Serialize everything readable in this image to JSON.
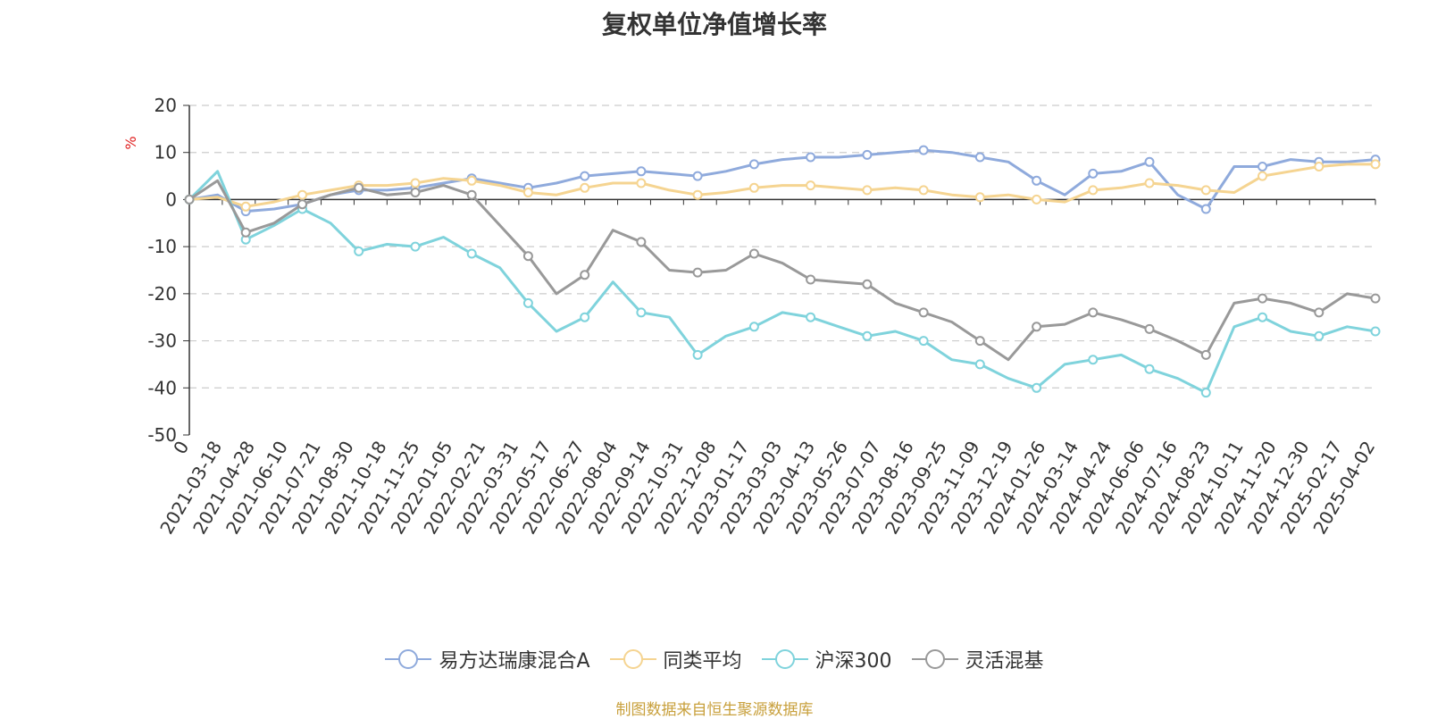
{
  "chart_data": {
    "type": "line",
    "title": "复权单位净值增长率",
    "ylabel": "%",
    "ylim": [
      -50,
      20
    ],
    "yticks": [
      -50,
      -40,
      -30,
      -20,
      -10,
      0,
      10,
      20
    ],
    "grid": true,
    "legend_position": "bottom",
    "x_tick_labels": [
      "0",
      "2021-03-18",
      "2021-04-28",
      "2021-06-10",
      "2021-07-21",
      "2021-08-30",
      "2021-10-18",
      "2021-11-25",
      "2022-01-05",
      "2022-02-21",
      "2022-03-31",
      "2022-05-17",
      "2022-06-27",
      "2022-08-04",
      "2022-09-14",
      "2022-10-31",
      "2022-12-08",
      "2023-01-17",
      "2023-03-03",
      "2023-04-13",
      "2023-05-26",
      "2023-07-07",
      "2023-08-16",
      "2023-09-25",
      "2023-11-09",
      "2023-12-19",
      "2024-01-26",
      "2024-03-14",
      "2024-04-24",
      "2024-06-06",
      "2024-07-16",
      "2024-08-23",
      "2024-10-11",
      "2024-11-20",
      "2024-12-30",
      "2025-02-17",
      "2025-04-02"
    ],
    "series": [
      {
        "name": "易方达瑞康混合A",
        "color": "#8faadc",
        "values": [
          0,
          1.0,
          -2.5,
          -2.0,
          -1.0,
          1.0,
          2.0,
          2.0,
          2.5,
          3.5,
          4.5,
          3.5,
          2.5,
          3.5,
          5.0,
          5.5,
          6.0,
          5.5,
          5.0,
          6.0,
          7.5,
          8.5,
          9.0,
          9.0,
          9.5,
          10.0,
          10.5,
          10.0,
          9.0,
          8.0,
          4.0,
          1.0,
          5.5,
          6.0,
          8.0,
          1.0,
          -2.0,
          7.0,
          7.0,
          8.5,
          8.0,
          8.0,
          8.5
        ]
      },
      {
        "name": "同类平均",
        "color": "#f5d491",
        "values": [
          0,
          0.5,
          -1.5,
          -0.5,
          1.0,
          2.0,
          3.0,
          3.0,
          3.5,
          4.5,
          4.0,
          3.0,
          1.5,
          1.0,
          2.5,
          3.5,
          3.5,
          2.0,
          1.0,
          1.5,
          2.5,
          3.0,
          3.0,
          2.5,
          2.0,
          2.5,
          2.0,
          1.0,
          0.5,
          1.0,
          0.0,
          -0.5,
          2.0,
          2.5,
          3.5,
          3.0,
          2.0,
          1.5,
          5.0,
          6.0,
          7.0,
          7.5,
          7.5
        ]
      },
      {
        "name": "沪深300",
        "color": "#7fd3dc",
        "values": [
          0,
          6.0,
          -8.5,
          -5.5,
          -2.0,
          -5.0,
          -11.0,
          -9.5,
          -10.0,
          -8.0,
          -11.5,
          -14.5,
          -22.0,
          -28.0,
          -25.0,
          -17.5,
          -24.0,
          -25.0,
          -33.0,
          -29.0,
          -27.0,
          -24.0,
          -25.0,
          -27.0,
          -29.0,
          -28.0,
          -30.0,
          -34.0,
          -35.0,
          -38.0,
          -40.0,
          -35.0,
          -34.0,
          -33.0,
          -36.0,
          -38.0,
          -41.0,
          -27.0,
          -25.0,
          -28.0,
          -29.0,
          -27.0,
          -28.0
        ]
      },
      {
        "name": "灵活混基",
        "color": "#999999",
        "values": [
          0,
          4.0,
          -7.0,
          -5.0,
          -1.0,
          1.0,
          2.5,
          1.0,
          1.5,
          3.0,
          1.0,
          -5.5,
          -12.0,
          -20.0,
          -16.0,
          -6.5,
          -9.0,
          -15.0,
          -15.5,
          -15.0,
          -11.5,
          -13.5,
          -17.0,
          -17.5,
          -18.0,
          -22.0,
          -24.0,
          -26.0,
          -30.0,
          -34.0,
          -27.0,
          -26.5,
          -24.0,
          -25.5,
          -27.5,
          -30.0,
          -33.0,
          -22.0,
          -21.0,
          -22.0,
          -24.0,
          -20.0,
          -21.0
        ]
      }
    ]
  },
  "footer": {
    "source": "制图数据来自恒生聚源数据库"
  }
}
